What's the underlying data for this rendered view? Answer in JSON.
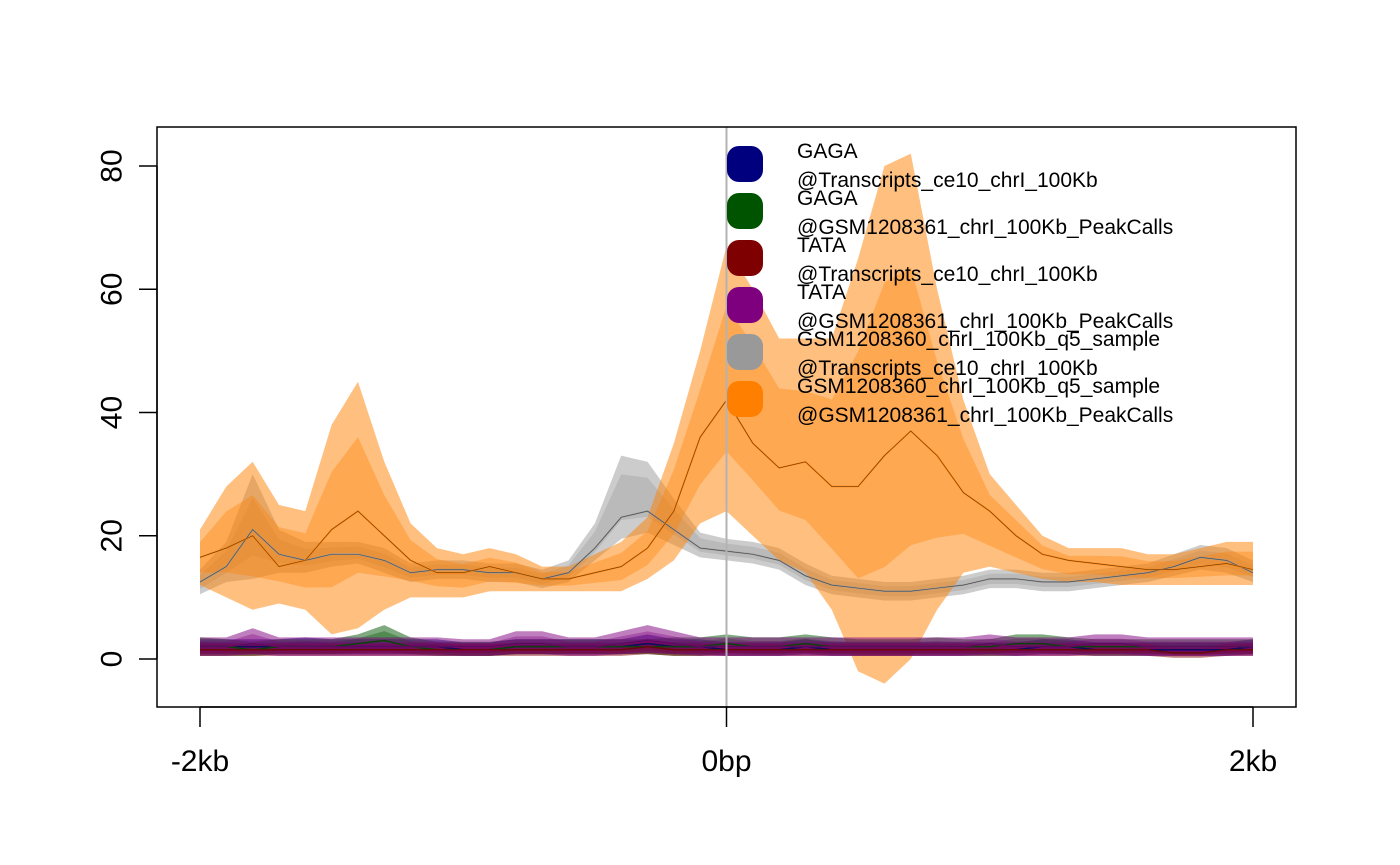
{
  "chart_data": {
    "type": "area",
    "title": "",
    "xlabel": "",
    "ylabel": "",
    "xlim": [
      -2000,
      2000
    ],
    "ylim": [
      -8,
      87
    ],
    "x_ticks": [
      {
        "value": -2000,
        "label": "-2kb"
      },
      {
        "value": 0,
        "label": "0bp"
      },
      {
        "value": 2000,
        "label": "2kb"
      }
    ],
    "y_ticks": [
      {
        "value": 0,
        "label": "0"
      },
      {
        "value": 20,
        "label": "20"
      },
      {
        "value": 40,
        "label": "40"
      },
      {
        "value": 60,
        "label": "60"
      },
      {
        "value": 80,
        "label": "80"
      }
    ],
    "vline_x": 0,
    "legend_position": "top-right",
    "x": [
      -2000,
      -1900,
      -1800,
      -1700,
      -1600,
      -1500,
      -1400,
      -1300,
      -1200,
      -1100,
      -1000,
      -900,
      -800,
      -700,
      -600,
      -500,
      -400,
      -300,
      -200,
      -100,
      0,
      100,
      200,
      300,
      400,
      500,
      600,
      700,
      800,
      900,
      1000,
      1100,
      1200,
      1300,
      1400,
      1500,
      1600,
      1700,
      1800,
      1900,
      2000
    ],
    "series": [
      {
        "legend_lines": [
          "GAGA",
          "@Transcripts_ce10_chrI_100Kb"
        ],
        "color": "#00007F",
        "mean": [
          2,
          2,
          2,
          2,
          2,
          2,
          2,
          2,
          2,
          2,
          1.5,
          1.5,
          2,
          2,
          2,
          2,
          2,
          2.5,
          2,
          2,
          1.5,
          1.5,
          1.5,
          2,
          1.5,
          1.5,
          1.5,
          1.5,
          1.5,
          1.5,
          1.5,
          1.5,
          2,
          2,
          1.5,
          1.5,
          1.5,
          1.5,
          1.5,
          1.5,
          2
        ],
        "lower": [
          0.8,
          0.8,
          0.8,
          0.8,
          0.8,
          0.8,
          0.8,
          0.8,
          0.8,
          0.8,
          0.5,
          0.5,
          0.8,
          0.8,
          0.8,
          0.8,
          0.8,
          1,
          0.8,
          0.8,
          0.5,
          0.5,
          0.5,
          0.8,
          0.5,
          0.5,
          0.5,
          0.5,
          0.5,
          0.5,
          0.5,
          0.5,
          0.8,
          0.8,
          0.5,
          0.5,
          0.5,
          0.5,
          0.5,
          0.5,
          0.8
        ],
        "upper": [
          3.2,
          3.2,
          3.2,
          3.2,
          3.5,
          3.2,
          3.2,
          3.2,
          3.2,
          3.2,
          2.7,
          2.7,
          3.2,
          3.2,
          3.2,
          3.2,
          3.2,
          4,
          3.2,
          3.2,
          2.7,
          2.7,
          2.7,
          3.2,
          2.7,
          2.7,
          2.7,
          2.7,
          2.7,
          2.7,
          2.7,
          2.7,
          3.2,
          3.2,
          2.7,
          2.7,
          2.7,
          2.7,
          2.7,
          2.7,
          3.2
        ]
      },
      {
        "legend_lines": [
          "GAGA",
          "@GSM1208361_chrI_100Kb_PeakCalls"
        ],
        "color": "#005400",
        "mean": [
          2,
          2,
          1.5,
          2,
          2,
          2,
          2.5,
          3,
          2,
          1.5,
          1.5,
          1.5,
          2,
          2,
          2,
          2,
          2,
          2,
          2,
          2,
          2.5,
          2,
          2,
          2.5,
          2,
          2,
          2,
          2,
          2,
          2,
          2,
          2.5,
          2.5,
          2,
          2,
          2,
          2,
          2,
          2,
          2,
          2
        ],
        "lower": [
          0.5,
          0.5,
          0.5,
          0.8,
          0.8,
          0.8,
          1,
          1.2,
          0.8,
          0.5,
          0.5,
          0.5,
          0.8,
          0.8,
          0.8,
          0.8,
          0.8,
          0.8,
          0.5,
          0.5,
          1,
          0.8,
          0.8,
          1,
          0.8,
          0.8,
          0.8,
          0.8,
          0.8,
          0.8,
          0.8,
          1,
          1,
          0.8,
          0.8,
          0.8,
          0.8,
          0.8,
          0.8,
          0.8,
          0.8
        ],
        "upper": [
          3.5,
          3.2,
          2.8,
          3.2,
          3.2,
          3.2,
          4,
          5.5,
          3.5,
          2.8,
          2.8,
          2.8,
          3.2,
          3.2,
          3.2,
          3.2,
          3.2,
          3.2,
          3.5,
          3.5,
          4,
          3.5,
          3.5,
          4,
          3.5,
          3.2,
          3.2,
          3.2,
          3.5,
          3.2,
          3.2,
          4,
          4,
          3.5,
          3.2,
          3.2,
          3.2,
          3.2,
          3.2,
          3.2,
          3.2
        ]
      },
      {
        "legend_lines": [
          "TATA",
          "@Transcripts_ce10_chrI_100Kb"
        ],
        "color": "#7F0000",
        "mean": [
          1.5,
          1.5,
          1.5,
          1.5,
          1.5,
          1.5,
          1.5,
          1.5,
          1.5,
          1.5,
          1.5,
          1.5,
          1.5,
          1.5,
          1.5,
          1.5,
          1.5,
          2,
          1.5,
          1.5,
          1.5,
          1.5,
          1.5,
          1.5,
          1.5,
          1.5,
          1.5,
          1.5,
          1.5,
          1.5,
          1.5,
          1.5,
          1.5,
          1.5,
          1.5,
          1.5,
          1.5,
          1,
          1,
          1.5,
          1.5
        ],
        "lower": [
          0.5,
          0.5,
          0.5,
          0.5,
          0.5,
          0.5,
          0.5,
          0.5,
          0.5,
          0.5,
          0.5,
          0.5,
          0.5,
          0.5,
          0.5,
          0.5,
          0.5,
          0.8,
          0.5,
          0.5,
          0.5,
          0.5,
          0.5,
          0.5,
          0.5,
          0.5,
          0.5,
          0.5,
          0.5,
          0.5,
          0.5,
          0.5,
          0.5,
          0.5,
          0.5,
          0.5,
          0.5,
          0.2,
          0.2,
          0.5,
          0.5
        ],
        "upper": [
          2.5,
          2.5,
          2.5,
          2.5,
          2.5,
          2.5,
          2.5,
          2.5,
          2.5,
          2.5,
          2.5,
          2.5,
          2.5,
          2.5,
          2.5,
          2.5,
          2.5,
          3.2,
          2.5,
          2.5,
          2.5,
          2.5,
          2.5,
          2.5,
          2.5,
          2.5,
          2.5,
          2.5,
          2.5,
          2.5,
          2.5,
          2.5,
          2.5,
          2.5,
          2.5,
          2.5,
          2.5,
          1.8,
          1.8,
          2.5,
          2.5
        ]
      },
      {
        "legend_lines": [
          "TATA",
          "@GSM1208361_chrI_100Kb_PeakCalls"
        ],
        "color": "#7F007F",
        "mean": [
          2,
          2,
          2.5,
          2,
          2,
          2,
          2,
          2,
          2,
          2,
          2,
          2,
          2.5,
          2.5,
          2,
          2,
          2.5,
          3,
          2.5,
          2,
          2,
          2,
          2,
          2,
          2,
          2,
          2,
          2,
          2,
          2,
          2.5,
          2,
          2,
          2,
          2.5,
          2.5,
          2,
          2,
          2,
          2,
          2
        ],
        "lower": [
          0.5,
          0.5,
          0.8,
          0.5,
          0.5,
          0.5,
          0.5,
          0.5,
          0.5,
          0.5,
          0.5,
          0.5,
          0.8,
          0.8,
          0.5,
          0.5,
          0.8,
          1,
          0.8,
          0.5,
          0.5,
          0.5,
          0.5,
          0.5,
          0.5,
          0.5,
          0.5,
          0.5,
          0.5,
          0.5,
          0.8,
          0.5,
          0.5,
          0.5,
          0.8,
          0.8,
          0.5,
          0.5,
          0.5,
          0.5,
          0.5
        ],
        "upper": [
          3.5,
          3.5,
          5,
          3.5,
          3.5,
          3.5,
          3.5,
          3.5,
          3.5,
          3.5,
          3.2,
          3.2,
          4.5,
          4.5,
          3.5,
          3.5,
          4.5,
          5.5,
          4.5,
          3.5,
          3.5,
          3.5,
          3.5,
          3.5,
          3.5,
          3.5,
          3.5,
          3.5,
          3.5,
          3.5,
          4,
          3.5,
          3.5,
          3.5,
          4,
          4,
          3.5,
          3.5,
          3.5,
          3.5,
          3.5
        ]
      },
      {
        "legend_lines": [
          "GSM1208360_chrI_100Kb_q5_sample",
          "@Transcripts_ce10_chrI_100Kb"
        ],
        "color": "#999999",
        "mean": [
          12.5,
          15,
          21,
          17,
          16,
          17,
          17,
          16,
          14,
          14.5,
          14.5,
          14,
          14,
          13,
          14,
          18,
          23,
          24,
          21,
          18,
          17.5,
          17,
          16,
          13.5,
          12,
          11.5,
          11,
          11,
          11.5,
          12,
          13,
          13,
          12.5,
          12.5,
          13,
          13.5,
          14,
          15,
          16.5,
          16,
          14
        ],
        "lower": [
          10.5,
          12.5,
          13,
          14,
          14,
          15,
          15.5,
          14,
          12.5,
          13,
          13,
          12.5,
          12.5,
          11.5,
          12.5,
          16,
          19.5,
          20.5,
          18.5,
          16.5,
          16,
          15.5,
          14.5,
          12,
          10.5,
          10,
          9.5,
          9.5,
          10,
          10.5,
          11.5,
          11.5,
          11,
          11,
          11.5,
          12,
          12.5,
          13.5,
          14.5,
          14,
          12.5
        ],
        "upper": [
          14.5,
          19,
          30,
          21,
          19,
          19,
          19,
          18,
          15.5,
          16,
          16,
          15.5,
          15.5,
          14.5,
          16,
          22,
          33,
          32,
          26,
          20.5,
          19.5,
          19,
          18,
          15.5,
          13.5,
          13,
          12.5,
          12.5,
          13,
          13.5,
          14.5,
          14.5,
          14,
          14,
          14.5,
          15,
          15.5,
          17,
          18.5,
          18,
          16
        ]
      },
      {
        "legend_lines": [
          "GSM1208360_chrI_100Kb_q5_sample",
          "@GSM1208361_chrI_100Kb_PeakCalls"
        ],
        "color": "#FF7F00",
        "mean": [
          16.5,
          18,
          20,
          15,
          16,
          21,
          24,
          20,
          16,
          14,
          14,
          15,
          14,
          13,
          13,
          14,
          15,
          18,
          24,
          36,
          42,
          35,
          31,
          32,
          28,
          28,
          33,
          37,
          33,
          27,
          24,
          20,
          17,
          16,
          15.5,
          15,
          14.5,
          14.5,
          15,
          15.5,
          14.5
        ],
        "lower": [
          12,
          10,
          8,
          9,
          8,
          4,
          5,
          8,
          10,
          10,
          10,
          11,
          11,
          11,
          11,
          11,
          11,
          13,
          16,
          22,
          24,
          20,
          16,
          14,
          8,
          -2,
          -4,
          0,
          8,
          14,
          15,
          14,
          13,
          12.5,
          12.5,
          12,
          12,
          12,
          12,
          12,
          12
        ],
        "upper": [
          21,
          28,
          32,
          25,
          24,
          38,
          45,
          32,
          22,
          18,
          17,
          18,
          17,
          15,
          15,
          17,
          19,
          23,
          35,
          50,
          67,
          60,
          52,
          52,
          52,
          65,
          80,
          82,
          60,
          42,
          30,
          25,
          20,
          18,
          18,
          18,
          17,
          17,
          18,
          19,
          19
        ]
      }
    ]
  }
}
